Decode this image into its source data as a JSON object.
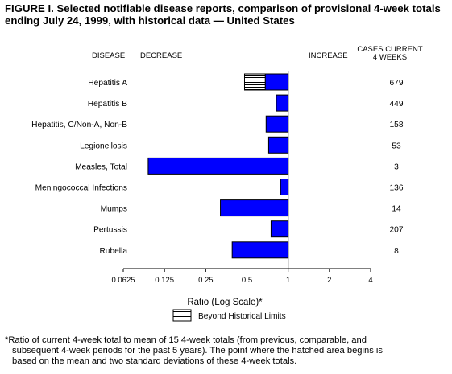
{
  "title": "FIGURE I. Selected notifiable disease reports, comparison of provisional 4-week totals ending July 24, 1999, with historical data — United States",
  "headers": {
    "disease": "DISEASE",
    "decrease": "DECREASE",
    "increase": "INCREASE",
    "cases_line1": "CASES CURRENT",
    "cases_line2": "4 WEEKS"
  },
  "legend": {
    "label": "Beyond Historical Limits"
  },
  "footnote": {
    "line1": "*Ratio of current 4-week total to mean of 15 4-week totals (from previous, comparable, and",
    "line2": "subsequent 4-week periods for the past 5 years). The point where the hatched area begins is",
    "line3": "based on the mean and two standard deviations of these 4-week totals."
  },
  "colors": {
    "bar": "#0000FF",
    "outline": "#000000",
    "hatch": "#000000",
    "background": "#FFFFFF"
  },
  "chart_data": {
    "type": "bar",
    "orientation": "horizontal",
    "xscale": "log2",
    "xlabel": "Ratio (Log Scale)*",
    "xlim": [
      0.0625,
      4
    ],
    "xticks": [
      0.0625,
      0.125,
      0.25,
      0.5,
      1,
      2,
      4
    ],
    "xtick_labels": [
      "0.0625",
      "0.125",
      "0.25",
      "0.5",
      "1",
      "2",
      "4"
    ],
    "baseline": 1,
    "categories": [
      "Hepatitis A",
      "Hepatitis B",
      "Hepatitis, C/Non-A, Non-B",
      "Legionellosis",
      "Measles, Total",
      "Meningococcal Infections",
      "Mumps",
      "Pertussis",
      "Rubella"
    ],
    "values": [
      0.48,
      0.82,
      0.69,
      0.72,
      0.095,
      0.88,
      0.32,
      0.75,
      0.39
    ],
    "hatched_start": [
      0.68,
      null,
      null,
      null,
      null,
      null,
      null,
      null,
      null
    ],
    "cases_current_4_weeks": [
      "679",
      "449",
      "158",
      "53",
      "3",
      "136",
      "14",
      "207",
      "8"
    ]
  }
}
